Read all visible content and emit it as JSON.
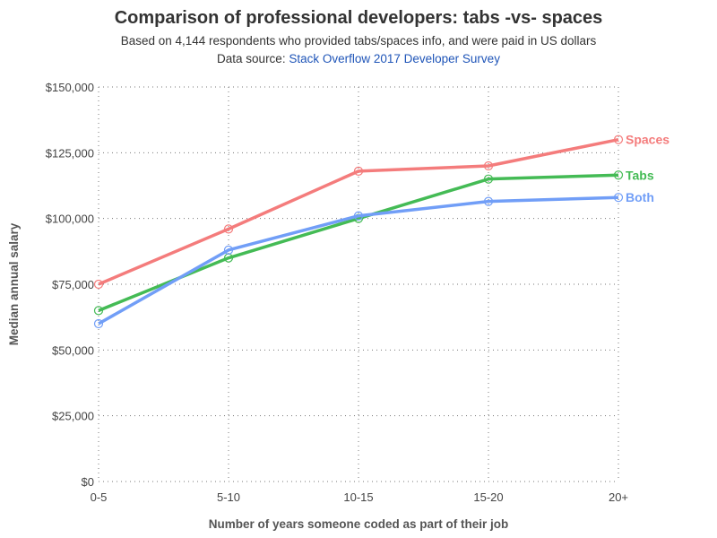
{
  "chart_data": {
    "type": "line",
    "title": "Comparison of professional developers: tabs -vs- spaces",
    "subtitle": "Based on 4,144 respondents who provided tabs/spaces info, and were paid in US dollars",
    "source_prefix": "Data source: ",
    "source_link": "Stack Overflow 2017 Developer Survey",
    "xlabel": "Number of years someone coded as part of their job",
    "ylabel": "Median annual salary",
    "categories": [
      "0-5",
      "5-10",
      "10-15",
      "15-20",
      "20+"
    ],
    "ylim": [
      0,
      150000
    ],
    "yticks": [
      0,
      25000,
      50000,
      75000,
      100000,
      125000,
      150000
    ],
    "ytick_labels": [
      "$0",
      "$25,000",
      "$50,000",
      "$75,000",
      "$100,000",
      "$125,000",
      "$150,000"
    ],
    "grid": true,
    "legend": "inline labels at line ends",
    "series": [
      {
        "name": "Spaces",
        "color": "#f47c7c",
        "values": [
          75000,
          96000,
          118000,
          120000,
          130000
        ]
      },
      {
        "name": "Tabs",
        "color": "#44bb55",
        "values": [
          65000,
          85000,
          100000,
          115000,
          116500
        ]
      },
      {
        "name": "Both",
        "color": "#719ef7",
        "values": [
          60000,
          88000,
          101000,
          106500,
          108000
        ]
      }
    ]
  }
}
